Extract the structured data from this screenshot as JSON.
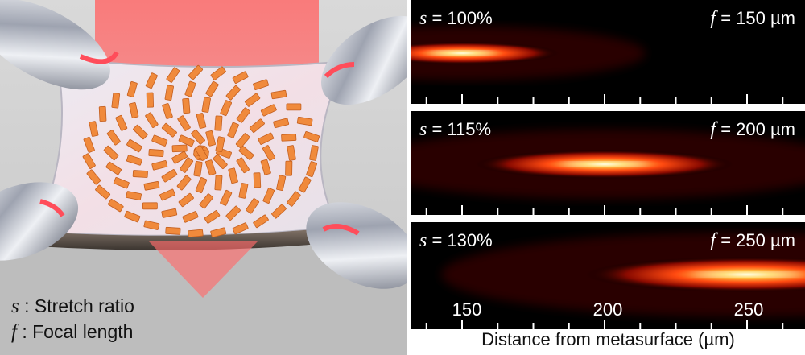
{
  "left_panel": {
    "legend": [
      {
        "symbol": "s",
        "text": " : Stretch ratio"
      },
      {
        "symbol": "f",
        "text": " : Focal length"
      }
    ]
  },
  "chart_data": [
    {
      "type": "heatmap",
      "stretch_symbol": "s",
      "stretch_value": " = 100%",
      "focal_symbol": "f",
      "focal_value": " = 150 µm",
      "focus_position_um": 150,
      "xlabel": "Distance from metasurface (µm)",
      "xticks": [
        150,
        200,
        250
      ],
      "colormap": "hot"
    },
    {
      "type": "heatmap",
      "stretch_symbol": "s",
      "stretch_value": " = 115%",
      "focal_symbol": "f",
      "focal_value": " = 200 µm",
      "focus_position_um": 200,
      "xlabel": "Distance from metasurface (µm)",
      "xticks": [
        150,
        200,
        250
      ],
      "colormap": "hot"
    },
    {
      "type": "heatmap",
      "stretch_symbol": "s",
      "stretch_value": " = 130%",
      "focal_symbol": "f",
      "focal_value": " = 250 µm",
      "focus_position_um": 250,
      "xlabel": "Distance from metasurface (µm)",
      "xticks": [
        150,
        200,
        250
      ],
      "colormap": "hot"
    }
  ],
  "axis": {
    "xlabel": "Distance from metasurface (µm)",
    "xticks": [
      "150",
      "200",
      "250"
    ]
  }
}
